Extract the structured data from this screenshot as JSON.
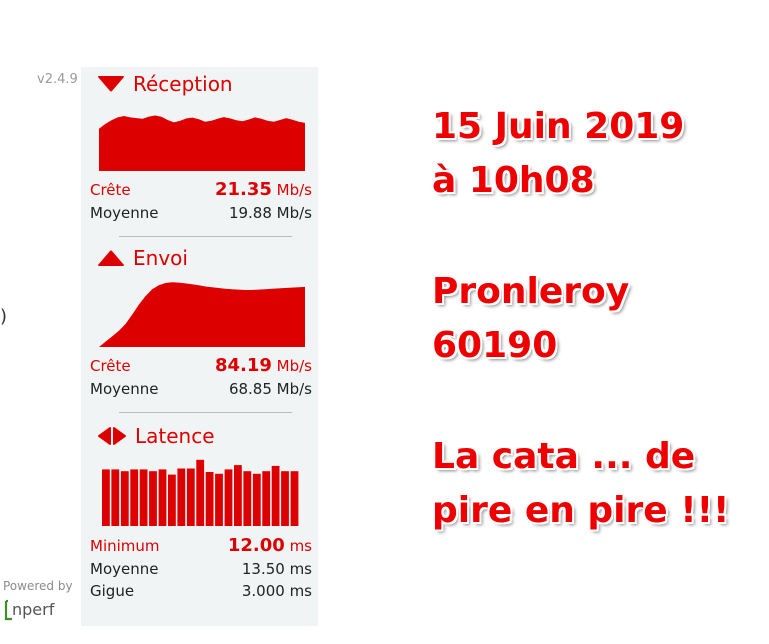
{
  "version": "v2.4.9",
  "colors": {
    "accent": "#dd0000",
    "panel_bg": "#f1f4f5"
  },
  "reception": {
    "title": "Réception",
    "icon": "triangle-down-icon",
    "peak_label": "Crête",
    "peak_value": "21.35",
    "peak_unit": "Mb/s",
    "avg_label": "Moyenne",
    "avg_value": "19.88 Mb/s",
    "series": [
      16.0,
      17.8,
      19.2,
      20.3,
      20.8,
      20.3,
      20.0,
      19.8,
      20.6,
      21.0,
      20.5,
      19.3,
      18.4,
      19.0,
      19.9,
      20.2,
      19.6,
      18.6,
      19.0,
      19.8,
      20.4,
      19.9,
      19.2,
      18.8,
      19.5,
      20.3,
      19.8,
      19.0,
      18.6,
      19.3,
      20.0,
      19.4,
      18.6,
      18.2
    ]
  },
  "envoi": {
    "title": "Envoi",
    "icon": "triangle-up-icon",
    "peak_label": "Crête",
    "peak_value": "84.19",
    "peak_unit": "Mb/s",
    "avg_label": "Moyenne",
    "avg_value": "68.85 Mb/s",
    "series": [
      0,
      7,
      14,
      21,
      30,
      42,
      55,
      66,
      75,
      80,
      83,
      84,
      83.5,
      82.5,
      81.5,
      80,
      78.5,
      77.5,
      76.5,
      75.5,
      75,
      74.5,
      74,
      74,
      74.5,
      75,
      75.5,
      76,
      76.5,
      77,
      77.5,
      78
    ]
  },
  "latence": {
    "title": "Latence",
    "icon": "latency-arrows-icon",
    "min_label": "Minimum",
    "min_value": "12.00",
    "min_unit": "ms",
    "avg_label": "Moyenne",
    "avg_value": "13.50 ms",
    "jitter_label": "Gigue",
    "jitter_value": "3.000 ms",
    "bars": [
      13.0,
      13.0,
      12.6,
      13.0,
      13.0,
      12.6,
      13.0,
      11.8,
      13.2,
      13.2,
      15.2,
      12.4,
      12.0,
      13.0,
      14.0,
      12.6,
      12.0,
      12.6,
      13.8,
      12.6,
      12.6
    ]
  },
  "footer": {
    "powered_by": "Powered by",
    "logo": "nperf-logo",
    "logo_text": "nperf"
  },
  "note": {
    "date": "15 Juin 2019",
    "time": "à 10h08",
    "place": "Pronleroy",
    "postcode": "60190",
    "comment_1": "La cata ... de",
    "comment_2": "pire en pire !!!"
  }
}
